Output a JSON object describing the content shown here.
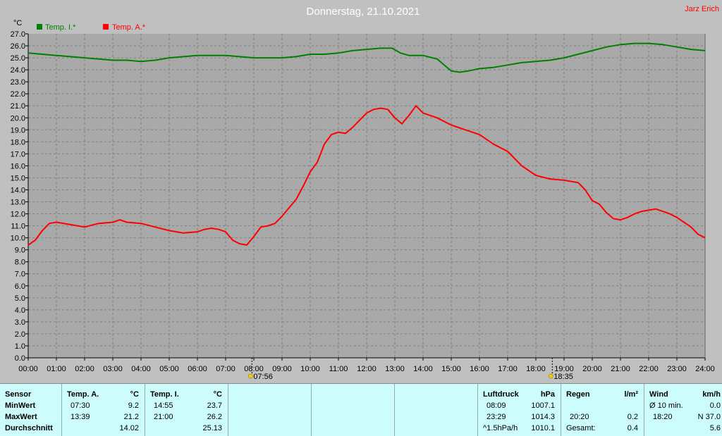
{
  "title": "Donnerstag, 21.10.2021",
  "author": "Jarz Erich",
  "chart_data": {
    "type": "line",
    "unit_label": "°C",
    "ylim": [
      0,
      27
    ],
    "yticks": [
      "0.0",
      "1.0",
      "2.0",
      "3.0",
      "4.0",
      "5.0",
      "6.0",
      "7.0",
      "8.0",
      "9.0",
      "10.0",
      "11.0",
      "12.0",
      "13.0",
      "14.0",
      "15.0",
      "16.0",
      "17.0",
      "18.0",
      "19.0",
      "20.0",
      "21.0",
      "22.0",
      "23.0",
      "24.0",
      "25.0",
      "26.0",
      "27.0"
    ],
    "xticks": [
      "00:00",
      "01:00",
      "02:00",
      "03:00",
      "04:00",
      "05:00",
      "06:00",
      "07:00",
      "08:00",
      "09:00",
      "10:00",
      "11:00",
      "12:00",
      "13:00",
      "14:00",
      "15:00",
      "16:00",
      "17:00",
      "18:00",
      "19:00",
      "20:00",
      "21:00",
      "22:00",
      "23:00",
      "24:00"
    ],
    "grid": true,
    "legend_position": "top-left",
    "markers": [
      {
        "label": "07:56",
        "hour": 7.933,
        "icon": "sunrise"
      },
      {
        "label": "18:35",
        "hour": 18.583,
        "icon": "sunset"
      }
    ],
    "series": [
      {
        "name": "Temp. I.*",
        "color": "#008000",
        "x": [
          0,
          0.5,
          1,
          1.5,
          2,
          2.5,
          3,
          3.5,
          4,
          4.5,
          5,
          5.5,
          6,
          6.5,
          7,
          7.5,
          8,
          8.5,
          9,
          9.5,
          10,
          10.5,
          11,
          11.5,
          12,
          12.5,
          12.9,
          13.2,
          13.5,
          14,
          14.5,
          14.8,
          15,
          15.3,
          15.6,
          16,
          16.5,
          17,
          17.5,
          18,
          18.5,
          19,
          19.5,
          20,
          20.5,
          21,
          21.5,
          22,
          22.5,
          23,
          23.5,
          24
        ],
        "y": [
          25.4,
          25.3,
          25.2,
          25.1,
          25.0,
          24.9,
          24.8,
          24.8,
          24.7,
          24.8,
          25.0,
          25.1,
          25.2,
          25.2,
          25.2,
          25.1,
          25.0,
          25.0,
          25.0,
          25.1,
          25.3,
          25.3,
          25.4,
          25.6,
          25.7,
          25.8,
          25.8,
          25.4,
          25.2,
          25.2,
          24.9,
          24.3,
          23.9,
          23.8,
          23.9,
          24.1,
          24.2,
          24.4,
          24.6,
          24.7,
          24.8,
          25.0,
          25.3,
          25.6,
          25.9,
          26.1,
          26.2,
          26.2,
          26.1,
          25.9,
          25.7,
          25.6
        ]
      },
      {
        "name": "Temp. A.*",
        "color": "#ff0000",
        "x": [
          0,
          0.25,
          0.5,
          0.75,
          1,
          1.5,
          2,
          2.5,
          3,
          3.25,
          3.5,
          4,
          4.5,
          5,
          5.5,
          6,
          6.25,
          6.5,
          6.75,
          7,
          7.25,
          7.5,
          7.75,
          8,
          8.25,
          8.5,
          8.75,
          9,
          9.25,
          9.5,
          9.75,
          10,
          10.25,
          10.5,
          10.75,
          11,
          11.25,
          11.5,
          11.75,
          12,
          12.25,
          12.5,
          12.75,
          13,
          13.25,
          13.5,
          13.75,
          14,
          14.5,
          15,
          15.5,
          16,
          16.5,
          17,
          17.5,
          18,
          18.5,
          19,
          19.5,
          19.75,
          20,
          20.25,
          20.5,
          20.75,
          21,
          21.25,
          21.5,
          21.75,
          22,
          22.25,
          22.5,
          22.75,
          23,
          23.25,
          23.5,
          23.75,
          24
        ],
        "y": [
          9.4,
          9.8,
          10.6,
          11.2,
          11.3,
          11.1,
          10.9,
          11.2,
          11.3,
          11.5,
          11.3,
          11.2,
          10.9,
          10.6,
          10.4,
          10.5,
          10.7,
          10.8,
          10.7,
          10.5,
          9.8,
          9.5,
          9.4,
          10.1,
          10.9,
          11.0,
          11.2,
          11.8,
          12.5,
          13.2,
          14.3,
          15.5,
          16.3,
          17.8,
          18.6,
          18.8,
          18.7,
          19.2,
          19.8,
          20.4,
          20.7,
          20.8,
          20.7,
          20.0,
          19.5,
          20.2,
          21.0,
          20.4,
          20.0,
          19.4,
          19.0,
          18.6,
          17.8,
          17.2,
          16.0,
          15.2,
          14.9,
          14.8,
          14.6,
          14.0,
          13.1,
          12.8,
          12.1,
          11.6,
          11.5,
          11.7,
          12.0,
          12.2,
          12.3,
          12.4,
          12.2,
          12.0,
          11.7,
          11.3,
          10.9,
          10.3,
          10.0
        ]
      }
    ]
  },
  "table": {
    "sensor": {
      "header": "Sensor",
      "rows": [
        "MinWert",
        "MaxWert",
        "Durchschnitt"
      ]
    },
    "temp_a": {
      "header": "Temp. A.",
      "unit": "°C",
      "min_time": "07:30",
      "min": "9.2",
      "max_time": "13:39",
      "max": "21.2",
      "avg": "14.02"
    },
    "temp_i": {
      "header": "Temp. I.",
      "unit": "°C",
      "min_time": "14:55",
      "min": "23.7",
      "max_time": "21:00",
      "max": "26.2",
      "avg": "25.13"
    },
    "luft": {
      "header": "Luftdruck",
      "unit": "hPa",
      "min_time": "08:09",
      "min": "1007.1",
      "max_time": "23:29",
      "max": "1014.3",
      "trend_label": "^1.5hPa/h",
      "current": "1010.1"
    },
    "regen": {
      "header": "Regen",
      "unit": "l/m²",
      "max_time": "20:20",
      "max": "0.2",
      "total_label": "Gesamt:",
      "total": "0.4"
    },
    "wind": {
      "header": "Wind",
      "unit": "km/h",
      "avg_label": "Ø 10 min.",
      "avg": "0.0",
      "max_time": "18:20",
      "max_dir": "N 37.0",
      "current": "5.6"
    }
  }
}
